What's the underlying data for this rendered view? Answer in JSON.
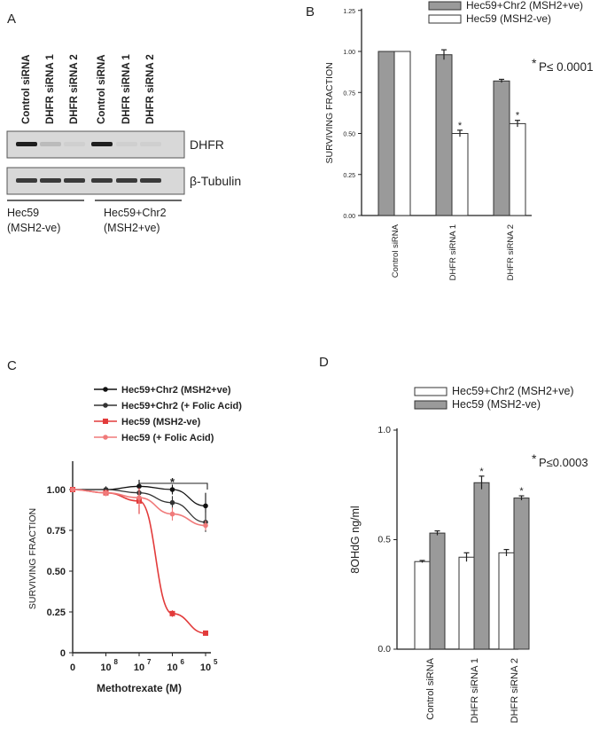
{
  "panel_labels": {
    "a": "A",
    "b": "B",
    "c": "C",
    "d": "D"
  },
  "blot": {
    "lanes": [
      "Control siRNA",
      "DHFR siRNA 1",
      "DHFR siRNA 2",
      "Control siRNA",
      "DHFR siRNA 1",
      "DHFR siRNA 2"
    ],
    "rows": [
      {
        "label": "DHFR",
        "band_intensity": [
          1.0,
          0.15,
          0.05,
          1.0,
          0.05,
          0.05
        ]
      },
      {
        "label": "β-Tubulin",
        "band_intensity": [
          0.85,
          0.85,
          0.85,
          0.85,
          0.85,
          0.85
        ]
      }
    ],
    "groups": [
      {
        "line1": "Hec59",
        "line2": "(MSH2-ve)"
      },
      {
        "line1": "Hec59+Chr2",
        "line2": "(MSH2+ve)"
      }
    ]
  },
  "chart_data": [
    {
      "id": "B",
      "type": "bar",
      "ylabel": "SURVIVING FRACTION",
      "ylim": [
        0,
        1.25
      ],
      "yticks": [
        "0.00",
        "0.25",
        "0.50",
        "0.75",
        "1.00",
        "1.25"
      ],
      "categories": [
        "Control siRNA",
        "DHFR siRNA 1",
        "DHFR siRNA 2"
      ],
      "series": [
        {
          "name": "Hec59+Chr2 (MSH2+ve)",
          "color": "#9a9a9a",
          "values": [
            1.0,
            0.98,
            0.82
          ],
          "errors": [
            0,
            0.03,
            0.01
          ]
        },
        {
          "name": "Hec59 (MSH2-ve)",
          "color": "#ffffff",
          "values": [
            1.0,
            0.5,
            0.56
          ],
          "errors": [
            0,
            0.02,
            0.02
          ]
        }
      ],
      "asterisks": [
        [
          false,
          false,
          false
        ],
        [
          false,
          true,
          true
        ]
      ],
      "legend_position": "top-right",
      "annotation": "P≤ 0.0001",
      "annotation_star": "*"
    },
    {
      "id": "C",
      "type": "line",
      "ylabel": "SURVIVING FRACTION",
      "xlabel": "Methotrexate (M)",
      "ylim": [
        0,
        1.25
      ],
      "yticks": [
        "0",
        "0.25",
        "0.50",
        "0.75",
        "1.00"
      ],
      "xticks": [
        {
          "base": "0",
          "exp": ""
        },
        {
          "base": "10",
          "exp": "8"
        },
        {
          "base": "10",
          "exp": "7"
        },
        {
          "base": "10",
          "exp": "6"
        },
        {
          "base": "10",
          "exp": "5"
        }
      ],
      "x": [
        0,
        1,
        2,
        3,
        4
      ],
      "series": [
        {
          "name": "Hec59+Chr2 (MSH2+ve)",
          "color": "#111111",
          "values": [
            1.0,
            1.0,
            1.02,
            1.0,
            0.9
          ],
          "errors": [
            0,
            0.01,
            0.04,
            0.03,
            0.08
          ]
        },
        {
          "name": "Hec59+Chr2 (+ Folic Acid)",
          "color": "#333333",
          "values": [
            1.0,
            1.0,
            0.98,
            0.92,
            0.8
          ],
          "errors": [
            0,
            0.02,
            0.05,
            0.04,
            0.06
          ]
        },
        {
          "name": "Hec59 (MSH2-ve)",
          "color": "#e23b3b",
          "values": [
            1.0,
            0.98,
            0.93,
            0.24,
            0.12
          ],
          "errors": [
            0,
            0.02,
            0.08,
            0.02,
            0.01
          ]
        },
        {
          "name": "Hec59 (+ Folic Acid)",
          "color": "#f07a7a",
          "values": [
            1.0,
            0.98,
            0.95,
            0.85,
            0.78
          ],
          "errors": [
            0,
            0.02,
            0.04,
            0.04,
            0.03
          ]
        }
      ],
      "legend_position": "top-left",
      "annotation": "*"
    },
    {
      "id": "D",
      "type": "bar",
      "ylabel": "8OHdG ng/ml",
      "ylim": [
        0,
        1.0
      ],
      "yticks": [
        "0.0",
        "0.5",
        "1.0"
      ],
      "categories": [
        "Control siRNA",
        "DHFR siRNA 1",
        "DHFR siRNA 2"
      ],
      "series": [
        {
          "name": "Hec59+Chr2 (MSH2+ve)",
          "color": "#ffffff",
          "values": [
            0.4,
            0.42,
            0.44
          ],
          "errors": [
            0.005,
            0.02,
            0.015
          ]
        },
        {
          "name": "Hec59 (MSH2-ve)",
          "color": "#9a9a9a",
          "values": [
            0.53,
            0.76,
            0.69
          ],
          "errors": [
            0.01,
            0.03,
            0.01
          ]
        }
      ],
      "asterisks": [
        [
          false,
          false,
          false
        ],
        [
          false,
          true,
          true
        ]
      ],
      "legend_position": "top",
      "annotation": "P≤0.0003",
      "annotation_star": "*"
    }
  ]
}
